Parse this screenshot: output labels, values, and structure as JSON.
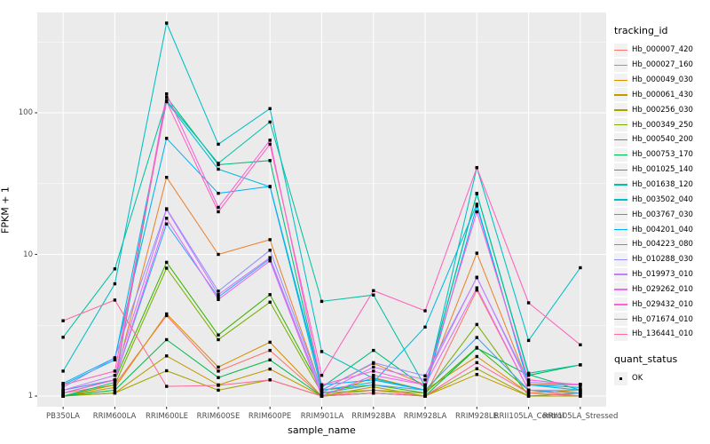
{
  "colors": {
    "panel_bg": "#EBEBEB",
    "grid": "#FFFFFF",
    "point": "#000000",
    "tick_text": "#4D4D4D",
    "tick_mark": "#333333",
    "legend_key_bg": "#F2F2F2"
  },
  "axes": {
    "x_title": "sample_name",
    "y_title": "FPKM + 1",
    "y_tick_labels": [
      "1",
      "10",
      "100"
    ]
  },
  "legend": {
    "tracking_title": "tracking_id",
    "quant_title": "quant_status",
    "quant_items": [
      {
        "label": "OK"
      }
    ]
  },
  "chart_data": {
    "type": "line",
    "title": "",
    "xlabel": "sample_name",
    "ylabel": "FPKM + 1",
    "y_scale": "log10",
    "y_major_ticks": [
      1,
      10,
      100
    ],
    "y_minor_ticks": [
      3.1623,
      31.623,
      316.23
    ],
    "grid": true,
    "legend_position": "right",
    "point_shape": "filled-square",
    "point_status_label": "OK",
    "categories": [
      "PB350LA",
      "RRIM600LA",
      "RRIM600LE",
      "RRIM600SE",
      "RRIM600PE",
      "RRIM901LA",
      "RRIM928BA",
      "RRIM928LA",
      "RRIM928LE",
      "RRII105LA_Control",
      "RRII105LA_Stressed"
    ],
    "series": [
      {
        "name": "Hb_000007_420",
        "color": "#F8766D",
        "values": [
          1.05,
          1.2,
          3.7,
          1.5,
          2.1,
          1.0,
          1.1,
          1.0,
          5.6,
          1.1,
          1.0
        ]
      },
      {
        "name": "Hb_000027_160",
        "color": "#EA8331",
        "values": [
          1.1,
          1.3,
          35,
          10,
          12.7,
          1.1,
          1.7,
          1.2,
          10.2,
          1.21,
          1.21
        ]
      },
      {
        "name": "Hb_000049_030",
        "color": "#D89000",
        "values": [
          1.0,
          1.15,
          3.8,
          1.6,
          2.4,
          1.0,
          1.35,
          1.1,
          1.9,
          1.05,
          1.1
        ]
      },
      {
        "name": "Hb_000061_430",
        "color": "#C09B00",
        "values": [
          1.0,
          1.05,
          1.92,
          1.2,
          1.55,
          1.0,
          1.16,
          1.0,
          1.42,
          1.0,
          1.05
        ]
      },
      {
        "name": "Hb_000256_030",
        "color": "#A3A500",
        "values": [
          1.0,
          1.05,
          1.51,
          1.1,
          1.3,
          1.0,
          1.05,
          1.0,
          1.56,
          1.0,
          1.0
        ]
      },
      {
        "name": "Hb_000349_250",
        "color": "#7CAE00",
        "values": [
          1.0,
          1.2,
          8.0,
          2.5,
          4.6,
          1.05,
          1.1,
          1.05,
          3.2,
          1.0,
          1.05
        ]
      },
      {
        "name": "Hb_000540_200",
        "color": "#39B600",
        "values": [
          1.05,
          1.3,
          8.8,
          2.7,
          5.2,
          1.1,
          1.2,
          1.05,
          2.2,
          1.1,
          1.05
        ]
      },
      {
        "name": "Hb_000753_170",
        "color": "#00BB4E",
        "values": [
          1.0,
          1.1,
          2.5,
          1.35,
          1.8,
          1.0,
          1.05,
          1.0,
          2.18,
          1.4,
          1.66
        ]
      },
      {
        "name": "Hb_001025_140",
        "color": "#00BF7D",
        "values": [
          1.0,
          1.25,
          129,
          43,
          46,
          1.15,
          2.1,
          1.15,
          26.8,
          1.42,
          1.1
        ]
      },
      {
        "name": "Hb_001638_120",
        "color": "#00C1A3",
        "values": [
          2.6,
          7.9,
          122,
          44,
          86,
          4.66,
          5.17,
          1.17,
          27,
          1.45,
          1.66
        ]
      },
      {
        "name": "Hb_003502_040",
        "color": "#00BFC4",
        "values": [
          1.5,
          6.2,
          430,
          60,
          107,
          2.06,
          1.33,
          1.1,
          41,
          2.47,
          8.05
        ]
      },
      {
        "name": "Hb_003767_030",
        "color": "#00BAE0",
        "values": [
          1.2,
          1.8,
          120,
          40,
          30,
          1.1,
          1.25,
          3.07,
          22.6,
          1.2,
          1.1
        ]
      },
      {
        "name": "Hb_004201_040",
        "color": "#00B0F6",
        "values": [
          1.23,
          1.86,
          66,
          27,
          30.2,
          1.2,
          1.3,
          1.1,
          22,
          1.2,
          1.15
        ]
      },
      {
        "name": "Hb_004223_080",
        "color": "#35A2FF",
        "values": [
          1.1,
          1.3,
          16.4,
          5.0,
          9.3,
          1.05,
          1.2,
          1.1,
          2.59,
          1.1,
          1.05
        ]
      },
      {
        "name": "Hb_010288_030",
        "color": "#9590FF",
        "values": [
          1.15,
          1.86,
          21,
          5.5,
          10.7,
          1.1,
          1.72,
          1.39,
          6.85,
          1.25,
          1.21
        ]
      },
      {
        "name": "Hb_019973_010",
        "color": "#C77CFF",
        "values": [
          1.1,
          1.4,
          20.8,
          5.2,
          9.5,
          1.05,
          1.6,
          1.3,
          6.9,
          1.2,
          1.2
        ]
      },
      {
        "name": "Hb_029262_010",
        "color": "#E76BF3",
        "values": [
          1.05,
          1.3,
          18,
          4.8,
          9.0,
          1.0,
          1.4,
          1.2,
          5.8,
          1.1,
          1.1
        ]
      },
      {
        "name": "Hb_029432_010",
        "color": "#FA62DB",
        "values": [
          1.05,
          1.3,
          136,
          21.5,
          64,
          1.2,
          1.5,
          1.2,
          20,
          1.3,
          1.2
        ]
      },
      {
        "name": "Hb_071674_010",
        "color": "#FF62BC",
        "values": [
          1.2,
          1.5,
          120,
          20,
          60,
          1.4,
          5.55,
          4.0,
          41,
          4.55,
          2.3
        ]
      },
      {
        "name": "Hb_136441_010",
        "color": "#FF6A98",
        "values": [
          3.4,
          4.76,
          1.17,
          1.19,
          1.3,
          1.0,
          1.05,
          1.0,
          1.72,
          1.05,
          1.0
        ]
      }
    ]
  }
}
